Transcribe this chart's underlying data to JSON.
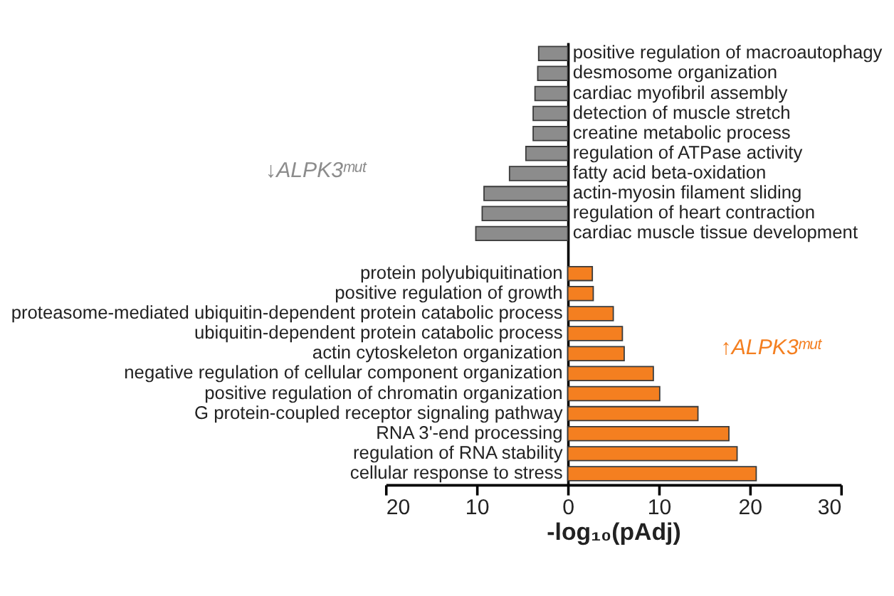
{
  "chart_data": {
    "type": "bar",
    "orientation": "horizontal",
    "categories": [
      "positive regulation of macroautophagy",
      "desmosome organization",
      "cardiac myofibril assembly",
      "detection of muscle stretch",
      "creatine metabolic process",
      "regulation of ATPase activity",
      "fatty acid beta-oxidation",
      "actin-myosin filament sliding",
      "regulation of heart contraction",
      "cardiac muscle tissue development",
      null,
      "protein polyubiquitination",
      "positive regulation of growth",
      "proteasome-mediated ubiquitin-dependent protein catabolic process",
      "ubiquitin-dependent protein catabolic process",
      "actin cytoskeleton organization",
      "negative regulation of cellular component organization",
      "positive regulation of chromatin organization",
      "G protein-coupled receptor signaling pathway",
      "RNA 3'-end processing",
      "regulation of RNA stability",
      "cellular response to stress"
    ],
    "series": [
      {
        "color": "#8c8c8c",
        "values": [
          -3.2,
          -3.3,
          -3.6,
          -3.8,
          -3.8,
          -4.6,
          -6.4,
          -9.2,
          -9.4,
          -10.1,
          null,
          null,
          null,
          null,
          null,
          null,
          null,
          null,
          null,
          null,
          null,
          null
        ]
      },
      {
        "color": "#f47f20",
        "values": [
          null,
          null,
          null,
          null,
          null,
          null,
          null,
          null,
          null,
          null,
          null,
          2.7,
          2.8,
          5.0,
          6.0,
          6.2,
          9.4,
          10.1,
          14.3,
          17.7,
          18.6,
          20.7
        ]
      }
    ],
    "xlim": [
      -20,
      30
    ],
    "xticks": [
      {
        "value": -20,
        "label": "20"
      },
      {
        "value": -10,
        "label": "10"
      },
      0,
      10,
      20,
      30
    ],
    "xlabel": "-log₁₀(pAdj)",
    "annotations": [
      "↓ALPK3ᵐᵘᵗ",
      "↑ALPK3ᵐᵘᵗ"
    ],
    "grid": false
  }
}
